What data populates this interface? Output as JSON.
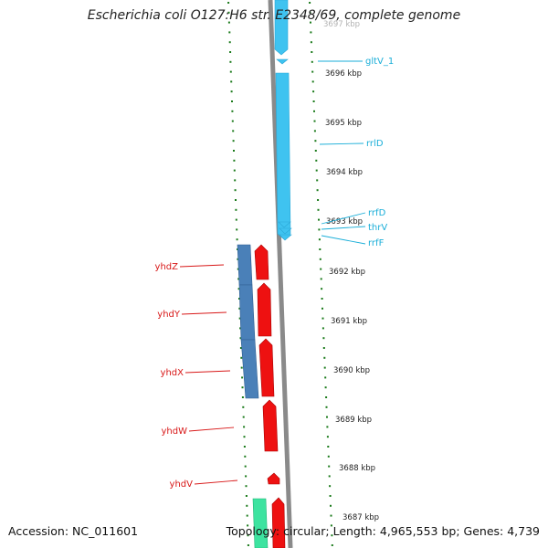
{
  "title": "Escherichia coli O127:H6 str. E2348/69, complete genome",
  "footer": {
    "accession": "Accession: NC_011601",
    "summary": "Topology: circular; Length: 4,965,553 bp; Genes: 4,739"
  },
  "scale": {
    "unit": "kbp",
    "labels": [
      "3697 kbp",
      "3696 kbp",
      "3695 kbp",
      "3694 kbp",
      "3693 kbp",
      "3692 kbp",
      "3691 kbp",
      "3690 kbp",
      "3689 kbp",
      "3688 kbp",
      "3687 kbp"
    ]
  },
  "rna_labels": [
    "gltV_1",
    "rrlD",
    "rrfD",
    "thrV",
    "rrfF"
  ],
  "gene_labels": [
    "yhdZ",
    "yhdY",
    "yhdX",
    "yhdW",
    "yhdV"
  ],
  "colors": {
    "backbone": "#8a8a8a",
    "rna": "#3fc3f0",
    "cds": "#ee1111",
    "operon": "#4a80b8",
    "other": "#3de3a0",
    "ticks": "#1a7a1a",
    "rna_label": "#1aaed8",
    "gene_label": "#d81818",
    "scale_label": "#222222"
  }
}
